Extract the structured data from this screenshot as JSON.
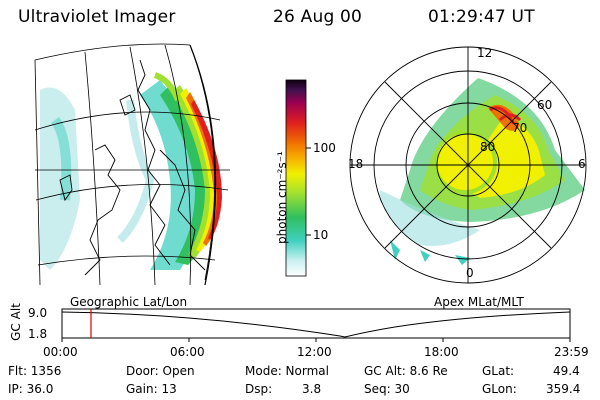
{
  "header": {
    "instrument": "Ultraviolet Imager",
    "date": "26 Aug 00",
    "time": "01:29:47 UT"
  },
  "colorbar": {
    "unit_label": "photon cm⁻²s⁻¹",
    "ticks": [
      "100",
      "10"
    ],
    "scale": "log",
    "colors": [
      "#ffffff",
      "#c8f0f0",
      "#40d0c0",
      "#30c060",
      "#a0e030",
      "#f0f000",
      "#f8b000",
      "#f07000",
      "#e02020",
      "#a00050",
      "#401050",
      "#100010"
    ]
  },
  "left_panel": {
    "caption": "Geographic Lat/Lon"
  },
  "right_panel": {
    "caption": "Apex MLat/MLT",
    "hour_labels": {
      "top": "12",
      "left": "18",
      "right": "6",
      "bottom": "0"
    },
    "lat_labels": [
      "80",
      "70",
      "60"
    ]
  },
  "gc_alt_plot": {
    "y_title": "GC Alt",
    "y_ticks": [
      "9.0",
      "1.8"
    ],
    "x_ticks": [
      "00:00",
      "06:00",
      "12:00",
      "18:00",
      "23:59"
    ],
    "marker_color": "#e00000"
  },
  "info": {
    "flt": "Flt: 1356",
    "ip": "IP: 36.0",
    "door": "Door: Open",
    "gain": "Gain: 13",
    "mode": "Mode: Normal",
    "dsp_label": "Dsp:",
    "dsp_value": "3.8",
    "gc_alt": "GC Alt: 8.6 Re",
    "seq": "Seq: 30",
    "glat_label": "GLat:",
    "glat_value": "49.4",
    "glon_label": "GLon:",
    "glon_value": "359.4"
  }
}
